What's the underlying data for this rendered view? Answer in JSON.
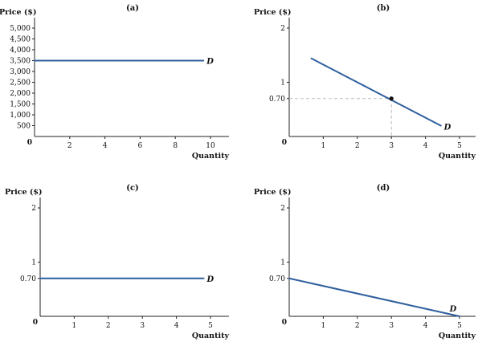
{
  "colors": {
    "curve": "#2f5f9e",
    "axis": "#222222",
    "guide": "#bbbbbb",
    "point": "#111111"
  },
  "chart_data": [
    {
      "type": "line",
      "panel_label": "(a)",
      "ylabel": "Price ($)",
      "xlabel": "Quantity",
      "xlim": [
        0,
        10.5
      ],
      "ylim": [
        0,
        5500
      ],
      "xticks": [
        2,
        4,
        6,
        8,
        10
      ],
      "yticks": [
        500,
        1000,
        1500,
        2000,
        2500,
        3000,
        3500,
        4000,
        4500,
        5000
      ],
      "ytick_labels": [
        "500",
        "1,000",
        "1,500",
        "2,000",
        "2,500",
        "3,000",
        "3,500",
        "4,000",
        "4,500",
        "5,000"
      ],
      "origin_label": "0",
      "series": [
        {
          "name": "D",
          "x": [
            0,
            9.6
          ],
          "y": [
            3500,
            3500
          ]
        }
      ]
    },
    {
      "type": "line",
      "panel_label": "(b)",
      "ylabel": "Price ($)",
      "xlabel": "Quantity",
      "xlim": [
        0,
        5.5
      ],
      "ylim": [
        0,
        2.2
      ],
      "xticks": [
        1,
        2,
        3,
        4,
        5
      ],
      "yticks": [
        0.7,
        1,
        2
      ],
      "ytick_labels": [
        "0.70",
        "1",
        "2"
      ],
      "origin_label": "0",
      "series": [
        {
          "name": "D",
          "x": [
            0.65,
            4.45
          ],
          "y": [
            1.44,
            0.2
          ]
        }
      ],
      "highlight_point": {
        "x": 3,
        "y": 0.7
      }
    },
    {
      "type": "line",
      "panel_label": "(c)",
      "ylabel": "Price ($)",
      "xlabel": "Quantity",
      "xlim": [
        0,
        5.5
      ],
      "ylim": [
        0,
        2.2
      ],
      "xticks": [
        1,
        2,
        3,
        4,
        5
      ],
      "yticks": [
        0.7,
        1,
        2
      ],
      "ytick_labels": [
        "0.70",
        "1",
        "2"
      ],
      "origin_label": "0",
      "series": [
        {
          "name": "D",
          "x": [
            0,
            4.8
          ],
          "y": [
            0.7,
            0.7
          ]
        }
      ]
    },
    {
      "type": "line",
      "panel_label": "(d)",
      "ylabel": "Price ($)",
      "xlabel": "Quantity",
      "xlim": [
        0,
        5.5
      ],
      "ylim": [
        0,
        2.2
      ],
      "xticks": [
        1,
        2,
        3,
        4,
        5
      ],
      "yticks": [
        0.7,
        1,
        2
      ],
      "ytick_labels": [
        "0.70",
        "1",
        "2"
      ],
      "origin_label": "0",
      "series": [
        {
          "name": "D",
          "x": [
            0,
            5
          ],
          "y": [
            0.7,
            0
          ]
        }
      ]
    }
  ]
}
